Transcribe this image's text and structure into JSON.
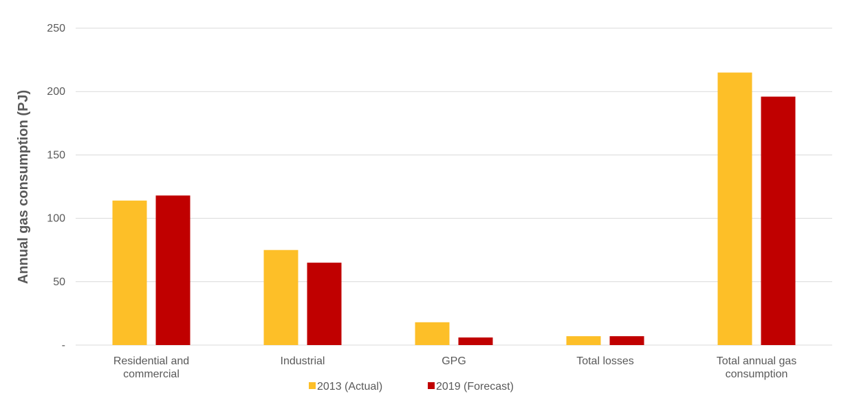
{
  "chart_data": {
    "type": "bar",
    "title": "",
    "xlabel": "",
    "ylabel": "Annual gas consumption (PJ)",
    "ylim": [
      0,
      250
    ],
    "yticks": [
      {
        "value": 0,
        "label": "-"
      },
      {
        "value": 50,
        "label": "50"
      },
      {
        "value": 100,
        "label": "100"
      },
      {
        "value": 150,
        "label": "150"
      },
      {
        "value": 200,
        "label": "200"
      },
      {
        "value": 250,
        "label": "250"
      }
    ],
    "categories": [
      [
        "Residential and",
        "commercial"
      ],
      [
        "Industrial"
      ],
      [
        "GPG"
      ],
      [
        "Total losses"
      ],
      [
        "Total annual gas",
        "consumption"
      ]
    ],
    "series": [
      {
        "name": "2013 (Actual)",
        "color": "#FDBF28",
        "values": [
          114,
          75,
          18,
          7,
          215
        ]
      },
      {
        "name": "2019 (Forecast)",
        "color": "#C00000",
        "values": [
          118,
          65,
          6,
          7,
          196
        ]
      }
    ],
    "grid": true,
    "legend": "bottom-center"
  }
}
